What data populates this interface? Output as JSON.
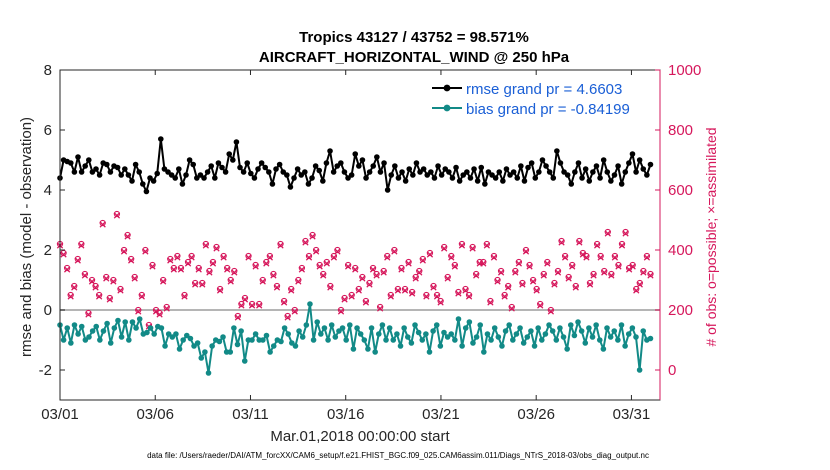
{
  "chart_data": {
    "type": "line",
    "title": [
      "Tropics 43127 / 43752 = 98.571%",
      "AIRCRAFT_HORIZONTAL_WIND @ 250 hPa"
    ],
    "xlabel": "Mar.01,2018 00:00:00 start",
    "ylabel": "rmse and bias (model - observation)",
    "y2label": "# of obs: o=possible; ×=assimilated",
    "xlim": [
      0,
      31.5
    ],
    "ylim": [
      -3,
      8
    ],
    "y2lim": [
      -100,
      1000
    ],
    "x_ticks": [
      0,
      5,
      10,
      15,
      20,
      25,
      30
    ],
    "x_tick_labels": [
      "03/01",
      "03/06",
      "03/11",
      "03/16",
      "03/21",
      "03/26",
      "03/31"
    ],
    "y_ticks": [
      -2,
      0,
      2,
      4,
      6,
      8
    ],
    "y2_ticks": [
      0,
      200,
      400,
      600,
      800,
      1000
    ],
    "zero_line": 0,
    "legend_location": "top-right",
    "series": [
      {
        "name": "rmse grand pr = 4.6603",
        "color": "#000000",
        "axis": "left",
        "marker": "dot",
        "values": [
          4.4,
          5.0,
          4.95,
          4.9,
          4.6,
          5.1,
          4.6,
          4.8,
          5.0,
          4.6,
          4.7,
          4.5,
          4.9,
          4.85,
          4.6,
          4.8,
          4.75,
          4.5,
          4.7,
          4.5,
          4.3,
          4.85,
          4.6,
          4.2,
          3.95,
          4.4,
          4.3,
          4.55,
          5.7,
          4.7,
          4.6,
          4.5,
          4.4,
          4.7,
          4.2,
          4.5,
          5.0,
          4.85,
          4.4,
          4.5,
          4.4,
          4.6,
          4.8,
          4.4,
          4.9,
          4.75,
          4.6,
          5.2,
          5.0,
          5.6,
          4.75,
          4.6,
          4.9,
          4.55,
          4.4,
          4.7,
          4.9,
          4.75,
          4.6,
          4.2,
          4.7,
          4.85,
          4.6,
          4.5,
          4.1,
          4.4,
          4.7,
          4.5,
          4.6,
          4.2,
          4.4,
          4.8,
          4.65,
          4.3,
          4.9,
          5.3,
          4.6,
          4.8,
          4.9,
          4.6,
          4.4,
          4.5,
          5.2,
          4.8,
          5.0,
          4.4,
          4.6,
          4.8,
          5.1,
          4.6,
          4.9,
          4.0,
          4.5,
          4.8,
          4.4,
          4.6,
          4.3,
          4.7,
          4.5,
          4.9,
          4.6,
          4.7,
          4.5,
          4.6,
          4.4,
          4.8,
          4.5,
          4.7,
          4.6,
          4.4,
          4.75,
          4.3,
          4.5,
          4.6,
          4.4,
          4.7,
          4.3,
          4.75,
          4.2,
          4.6,
          4.5,
          4.4,
          4.6,
          4.3,
          4.7,
          4.5,
          4.6,
          4.4,
          4.8,
          4.3,
          4.75,
          4.9,
          4.4,
          4.6,
          5.0,
          4.8,
          4.6,
          4.4,
          5.3,
          4.9,
          4.6,
          4.5,
          4.2,
          4.6,
          4.9,
          4.4,
          4.7,
          4.3,
          4.6,
          4.8,
          4.4,
          5.0,
          4.6,
          4.3,
          4.5,
          4.8,
          4.2,
          4.6,
          4.9,
          5.2,
          4.6,
          5.0,
          4.7,
          4.5,
          4.85
        ]
      },
      {
        "name": "bias grand pr = -0.84199",
        "color": "#128a87",
        "axis": "left",
        "marker": "dot",
        "values": [
          -0.5,
          -1.0,
          -0.6,
          -1.1,
          -0.5,
          -0.8,
          -0.55,
          -1.0,
          -0.9,
          -0.7,
          -0.55,
          -1.0,
          -0.7,
          -0.45,
          -1.1,
          -0.6,
          -0.35,
          -0.9,
          -0.4,
          -1.0,
          -0.4,
          -0.6,
          -0.3,
          -0.8,
          -0.75,
          -0.6,
          -0.8,
          -0.55,
          -0.6,
          -1.2,
          -0.8,
          -0.9,
          -0.8,
          -1.3,
          -1.0,
          -0.85,
          -0.95,
          -1.2,
          -1.1,
          -1.6,
          -1.4,
          -2.1,
          -1.2,
          -1.0,
          -1.05,
          -0.9,
          -1.4,
          -1.4,
          -0.6,
          -1.15,
          -0.7,
          -1.7,
          -1.0,
          -1.0,
          -0.8,
          -1.0,
          -1.0,
          -0.85,
          -1.4,
          -1.2,
          -1.0,
          -1.05,
          -0.6,
          -0.8,
          -1.1,
          -1.2,
          -0.7,
          -0.9,
          -0.5,
          0.2,
          -1.0,
          -0.4,
          -0.8,
          -0.6,
          -1.0,
          -0.5,
          -0.9,
          -0.7,
          -0.6,
          -1.0,
          -0.5,
          -1.3,
          -0.6,
          -0.8,
          -1.0,
          -1.3,
          -0.6,
          -1.4,
          -0.8,
          -0.5,
          -1.0,
          -0.6,
          -1.0,
          -0.8,
          -1.2,
          -0.6,
          -0.9,
          -1.1,
          -0.5,
          -0.75,
          -1.0,
          -0.8,
          -1.4,
          -0.7,
          -0.5,
          -1.2,
          -0.75,
          -0.9,
          -0.8,
          -1.0,
          -0.3,
          -1.2,
          -0.6,
          -0.4,
          -1.1,
          -0.9,
          -0.5,
          -1.4,
          -0.8,
          -1.0,
          -0.6,
          -0.9,
          -1.2,
          -0.7,
          -0.5,
          -1.0,
          -0.8,
          -0.6,
          -1.1,
          -0.9,
          -0.7,
          -1.2,
          -0.6,
          -1.0,
          -0.8,
          -0.5,
          -0.7,
          -1.0,
          -0.6,
          -0.9,
          -1.3,
          -0.5,
          -0.85,
          -0.4,
          -0.7,
          -1.1,
          -0.6,
          -0.9,
          -0.5,
          -1.0,
          -1.3,
          -0.6,
          -0.9,
          -0.7,
          -1.0,
          -0.5,
          -1.2,
          -0.8,
          -0.6,
          -0.9,
          -2.0,
          -0.7,
          -1.0,
          -0.95
        ]
      },
      {
        "name": "# of obs possible (o)",
        "color": "#d6185c",
        "axis": "right",
        "marker": "circle",
        "values": [
          420,
          390,
          340,
          250,
          280,
          370,
          420,
          320,
          190,
          300,
          280,
          250,
          490,
          310,
          240,
          300,
          520,
          270,
          400,
          450,
          370,
          310,
          200,
          250,
          400,
          150,
          350,
          200,
          190,
          300,
          210,
          370,
          340,
          380,
          340,
          250,
          360,
          380,
          290,
          340,
          290,
          420,
          330,
          360,
          410,
          270,
          380,
          340,
          300,
          330,
          180,
          220,
          240,
          380,
          220,
          350,
          220,
          300,
          360,
          380,
          320,
          280,
          420,
          230,
          180,
          270,
          200,
          300,
          340,
          430,
          380,
          450,
          400,
          350,
          320,
          360,
          280,
          380,
          400,
          200,
          240,
          350,
          250,
          340,
          270,
          310,
          230,
          290,
          340,
          320,
          210,
          330,
          380,
          250,
          400,
          270,
          340,
          270,
          360,
          260,
          310,
          330,
          370,
          250,
          390,
          280,
          250,
          230,
          410,
          310,
          380,
          350,
          260,
          420,
          270,
          250,
          410,
          320,
          360,
          360,
          420,
          230,
          380,
          300,
          330,
          250,
          280,
          210,
          330,
          360,
          290,
          400,
          350,
          300,
          270,
          220,
          320,
          360,
          200,
          290,
          330,
          430,
          380,
          310,
          350,
          280,
          430,
          390,
          380,
          290,
          320,
          420,
          380,
          330,
          460,
          320,
          380,
          350,
          420,
          460,
          340,
          350,
          270,
          290,
          330,
          380,
          320
        ]
      },
      {
        "name": "# of obs assimilated (×)",
        "color": "#d6185c",
        "axis": "right",
        "marker": "x",
        "values": [
          415,
          385,
          335,
          245,
          275,
          365,
          415,
          315,
          185,
          295,
          275,
          245,
          485,
          305,
          235,
          295,
          515,
          265,
          395,
          445,
          365,
          305,
          195,
          245,
          395,
          145,
          345,
          195,
          185,
          295,
          205,
          365,
          335,
          375,
          335,
          245,
          355,
          375,
          285,
          335,
          285,
          415,
          325,
          355,
          405,
          265,
          375,
          335,
          295,
          325,
          175,
          215,
          235,
          375,
          215,
          345,
          215,
          295,
          355,
          375,
          315,
          275,
          415,
          225,
          175,
          265,
          195,
          295,
          335,
          425,
          375,
          445,
          395,
          345,
          315,
          355,
          275,
          375,
          395,
          195,
          235,
          345,
          245,
          335,
          265,
          305,
          225,
          285,
          335,
          315,
          205,
          325,
          375,
          245,
          395,
          265,
          335,
          265,
          355,
          255,
          305,
          325,
          365,
          245,
          385,
          275,
          245,
          225,
          405,
          305,
          375,
          345,
          255,
          415,
          265,
          245,
          405,
          315,
          355,
          355,
          415,
          225,
          375,
          295,
          325,
          245,
          275,
          205,
          325,
          355,
          285,
          395,
          345,
          295,
          265,
          215,
          315,
          355,
          195,
          285,
          325,
          425,
          375,
          305,
          345,
          275,
          425,
          385,
          375,
          285,
          315,
          415,
          375,
          325,
          455,
          315,
          375,
          345,
          415,
          455,
          335,
          345,
          265,
          285,
          325,
          375,
          315
        ]
      }
    ]
  },
  "legend": {
    "rmse": "rmse grand pr = 4.6603",
    "bias": "bias grand pr = -0.84199"
  },
  "footer": "data file: /Users/raeder/DAI/ATM_forcXX/CAM6_setup/f.e21.FHIST_BGC.f09_025.CAM6assim.011/Diags_NTrS_2018-03/obs_diag_output.nc",
  "colors": {
    "rmse": "#000000",
    "bias": "#128a87",
    "obs": "#d6185c",
    "axis": "#262626",
    "zero": "#b5b5b5"
  }
}
